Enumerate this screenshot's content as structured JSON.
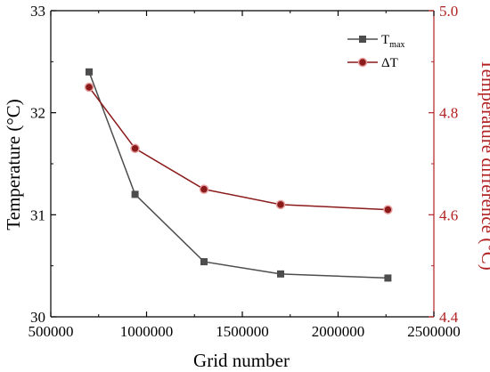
{
  "chart_data": {
    "type": "line",
    "xlabel": "Grid number",
    "ylabel_left": "Temperature (°C)",
    "ylabel_right": "Temperature difference (°C)",
    "xlim": [
      500000,
      2500000
    ],
    "ylim_left": [
      30,
      33
    ],
    "ylim_right": [
      4.4,
      5.0
    ],
    "x_ticks": [
      500000,
      1000000,
      1500000,
      2000000,
      2500000
    ],
    "x_tick_labels": [
      "500000",
      "1000000",
      "1500000",
      "2000000",
      "2500000"
    ],
    "y_left_ticks": [
      30,
      31,
      32,
      33
    ],
    "y_left_tick_labels": [
      "30",
      "31",
      "32",
      "33"
    ],
    "y_right_ticks": [
      4.4,
      4.6,
      4.8,
      5.0
    ],
    "y_right_tick_labels": [
      "4.4",
      "4.6",
      "4.8",
      "5.0"
    ],
    "grid": false,
    "legend_position": "top-right",
    "series": [
      {
        "name": "T",
        "name_subscript": "max",
        "axis": "left",
        "marker": "square",
        "color": "#4d4d4d",
        "x": [
          700000,
          940000,
          1300000,
          1700000,
          2260000
        ],
        "y": [
          32.4,
          31.2,
          30.54,
          30.42,
          30.38
        ]
      },
      {
        "name": "ΔT",
        "axis": "right",
        "marker": "circle",
        "color": "#8b1a1a",
        "x": [
          700000,
          940000,
          1300000,
          1700000,
          2260000
        ],
        "y": [
          4.85,
          4.73,
          4.65,
          4.62,
          4.61
        ]
      }
    ],
    "colors": {
      "left_axis": "#000000",
      "right_axis": "#b22222"
    }
  }
}
